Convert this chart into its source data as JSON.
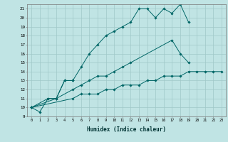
{
  "xlabel": "Humidex (Indice chaleur)",
  "bg_color": "#c0e4e4",
  "grid_color": "#a0c8c8",
  "line_color": "#006666",
  "xlim": [
    -0.5,
    23.5
  ],
  "ylim": [
    9,
    21.5
  ],
  "xticks": [
    0,
    1,
    2,
    3,
    4,
    5,
    6,
    7,
    8,
    9,
    10,
    11,
    12,
    13,
    14,
    15,
    16,
    17,
    18,
    19,
    20,
    21,
    22,
    23
  ],
  "yticks": [
    9,
    10,
    11,
    12,
    13,
    14,
    15,
    16,
    17,
    18,
    19,
    20,
    21
  ],
  "series": [
    {
      "x": [
        0,
        1,
        2,
        3,
        4,
        5
      ],
      "y": [
        10.0,
        9.5,
        11.0,
        11.0,
        13.0,
        13.0
      ]
    },
    {
      "x": [
        0,
        2,
        3,
        4,
        5,
        6,
        7,
        8,
        9,
        10,
        11,
        12,
        13,
        14,
        15,
        16,
        17,
        18,
        19
      ],
      "y": [
        10.0,
        11.0,
        11.0,
        13.0,
        13.0,
        14.5,
        16.0,
        17.0,
        18.0,
        18.5,
        19.0,
        19.5,
        21.0,
        21.0,
        20.0,
        21.0,
        20.5,
        21.5,
        19.5
      ]
    },
    {
      "x": [
        0,
        3,
        5,
        6,
        7,
        8,
        9,
        10,
        11,
        12,
        17,
        18,
        19
      ],
      "y": [
        10.0,
        11.0,
        12.0,
        12.5,
        13.0,
        13.5,
        13.5,
        14.0,
        14.5,
        15.0,
        17.5,
        16.0,
        15.0
      ]
    },
    {
      "x": [
        0,
        5,
        6,
        7,
        8,
        9,
        10,
        11,
        12,
        13,
        14,
        15,
        16,
        17,
        18,
        19,
        20,
        21,
        22,
        23
      ],
      "y": [
        10.0,
        11.0,
        11.5,
        11.5,
        11.5,
        12.0,
        12.0,
        12.5,
        12.5,
        12.5,
        13.0,
        13.0,
        13.5,
        13.5,
        13.5,
        14.0,
        14.0,
        14.0,
        14.0,
        14.0
      ]
    }
  ]
}
